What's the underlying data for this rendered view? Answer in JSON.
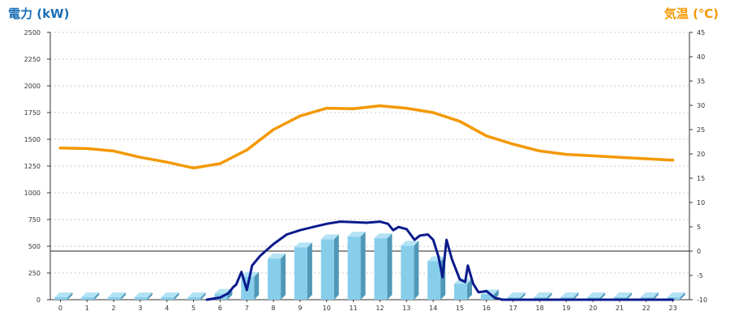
{
  "chart_data": {
    "type": "bar",
    "left_axis_title": "電力 (kW)",
    "right_axis_title": "気温 (℃)",
    "categories": [
      "0",
      "1",
      "2",
      "3",
      "4",
      "5",
      "6",
      "7",
      "8",
      "9",
      "10",
      "11",
      "12",
      "13",
      "14",
      "15",
      "16",
      "17",
      "18",
      "19",
      "20",
      "21",
      "22",
      "23"
    ],
    "y_left": {
      "min": 0,
      "max": 2500,
      "ticks": [
        "0",
        "250",
        "500",
        "750",
        "1000",
        "1250",
        "1500",
        "1750",
        "2000",
        "2250",
        "2500"
      ]
    },
    "y_right": {
      "min": -10,
      "max": 45,
      "ticks": [
        "-10",
        "-5",
        "0",
        "5",
        "10",
        "15",
        "20",
        "25",
        "30",
        "35",
        "40",
        "45"
      ]
    },
    "grid": true,
    "series": [
      {
        "type": "bar",
        "axis": "left",
        "color": "#87ceeb",
        "values": [
          0,
          0,
          0,
          0,
          0,
          0,
          55,
          215,
          385,
          490,
          565,
          590,
          575,
          505,
          360,
          150,
          50,
          0,
          0,
          0,
          0,
          0,
          0,
          0
        ]
      },
      {
        "type": "line",
        "axis": "left",
        "color": "#0a1a8c",
        "x": [
          5.5,
          6,
          6.3,
          6.5,
          6.6,
          6.8,
          7,
          7.2,
          7.5,
          8,
          8.5,
          9,
          9.5,
          10,
          10.5,
          11,
          11.5,
          12,
          12.3,
          12.5,
          12.7,
          13,
          13.3,
          13.5,
          13.8,
          14,
          14.2,
          14.35,
          14.5,
          14.7,
          15,
          15.2,
          15.3,
          15.5,
          15.7,
          16,
          16.3,
          16.6,
          17,
          18,
          23
        ],
        "values": [
          0,
          20,
          60,
          120,
          140,
          260,
          90,
          320,
          410,
          520,
          610,
          650,
          680,
          710,
          730,
          725,
          720,
          730,
          710,
          650,
          680,
          660,
          560,
          600,
          610,
          560,
          400,
          210,
          560,
          380,
          190,
          165,
          320,
          150,
          70,
          80,
          20,
          0,
          0,
          0,
          0
        ]
      },
      {
        "type": "line",
        "axis": "right",
        "color": "#f39800",
        "x": [
          0,
          1,
          2,
          3,
          4,
          5,
          6,
          7,
          8,
          9,
          10,
          11,
          12,
          13,
          14,
          15,
          16,
          17,
          18,
          19,
          20,
          21,
          22,
          23
        ],
        "values": [
          21.2,
          21.1,
          20.6,
          19.3,
          18.3,
          17.1,
          18,
          20.8,
          25,
          27.8,
          29.4,
          29.3,
          29.9,
          29.4,
          28.5,
          26.7,
          23.7,
          22,
          20.6,
          19.9,
          19.6,
          19.3,
          19,
          18.7
        ]
      }
    ],
    "reference_line": {
      "axis": "right",
      "value": 0
    }
  }
}
